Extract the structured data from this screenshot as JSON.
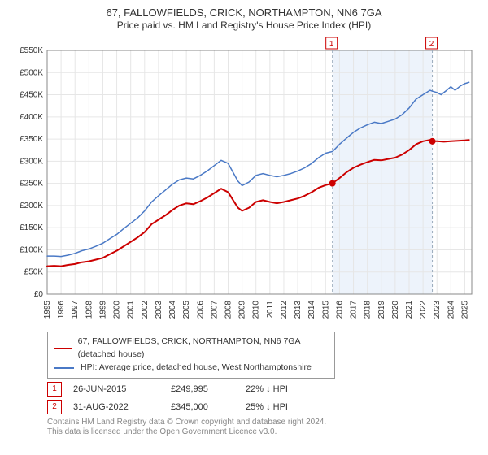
{
  "title": "67, FALLOWFIELDS, CRICK, NORTHAMPTON, NN6 7GA",
  "subtitle": "Price paid vs. HM Land Registry's House Price Index (HPI)",
  "chart": {
    "type": "line",
    "x_range": [
      1995,
      2025.5
    ],
    "y_range": [
      0,
      550000
    ],
    "y_ticks": [
      0,
      50000,
      100000,
      150000,
      200000,
      250000,
      300000,
      350000,
      400000,
      450000,
      500000,
      550000
    ],
    "y_tick_labels": [
      "£0",
      "£50K",
      "£100K",
      "£150K",
      "£200K",
      "£250K",
      "£300K",
      "£350K",
      "£400K",
      "£450K",
      "£500K",
      "£550K"
    ],
    "x_ticks": [
      1995,
      1996,
      1997,
      1998,
      1999,
      2000,
      2001,
      2002,
      2003,
      2004,
      2005,
      2006,
      2007,
      2008,
      2009,
      2010,
      2011,
      2012,
      2013,
      2014,
      2015,
      2016,
      2017,
      2018,
      2019,
      2020,
      2021,
      2022,
      2023,
      2024,
      2025
    ],
    "grid_color": "#e6e6e6",
    "axis_color": "#888888",
    "background_color": "#ffffff",
    "bands": [
      {
        "from": 2015.49,
        "to": 2022.67,
        "color": "#edf3fb"
      }
    ],
    "series": [
      {
        "key": "property",
        "label": "67, FALLOWFIELDS, CRICK, NORTHAMPTON, NN6 7GA (detached house)",
        "color": "#cc0000",
        "line_width": 2,
        "data": [
          [
            1995.0,
            63000
          ],
          [
            1995.5,
            64000
          ],
          [
            1996.0,
            63000
          ],
          [
            1996.5,
            66000
          ],
          [
            1997.0,
            68000
          ],
          [
            1997.5,
            72000
          ],
          [
            1998.0,
            74000
          ],
          [
            1998.5,
            78000
          ],
          [
            1999.0,
            82000
          ],
          [
            1999.5,
            90000
          ],
          [
            2000.0,
            98000
          ],
          [
            2000.5,
            108000
          ],
          [
            2001.0,
            118000
          ],
          [
            2001.5,
            128000
          ],
          [
            2002.0,
            140000
          ],
          [
            2002.5,
            158000
          ],
          [
            2003.0,
            168000
          ],
          [
            2003.5,
            178000
          ],
          [
            2004.0,
            190000
          ],
          [
            2004.5,
            200000
          ],
          [
            2005.0,
            205000
          ],
          [
            2005.5,
            203000
          ],
          [
            2006.0,
            210000
          ],
          [
            2006.5,
            218000
          ],
          [
            2007.0,
            228000
          ],
          [
            2007.5,
            238000
          ],
          [
            2008.0,
            230000
          ],
          [
            2008.3,
            215000
          ],
          [
            2008.7,
            195000
          ],
          [
            2009.0,
            188000
          ],
          [
            2009.5,
            195000
          ],
          [
            2010.0,
            208000
          ],
          [
            2010.5,
            212000
          ],
          [
            2011.0,
            208000
          ],
          [
            2011.5,
            205000
          ],
          [
            2012.0,
            208000
          ],
          [
            2012.5,
            212000
          ],
          [
            2013.0,
            216000
          ],
          [
            2013.5,
            222000
          ],
          [
            2014.0,
            230000
          ],
          [
            2014.5,
            240000
          ],
          [
            2015.0,
            246000
          ],
          [
            2015.49,
            249995
          ],
          [
            2016.0,
            262000
          ],
          [
            2016.5,
            275000
          ],
          [
            2017.0,
            285000
          ],
          [
            2017.5,
            292000
          ],
          [
            2018.0,
            298000
          ],
          [
            2018.5,
            303000
          ],
          [
            2019.0,
            302000
          ],
          [
            2019.5,
            305000
          ],
          [
            2020.0,
            308000
          ],
          [
            2020.5,
            315000
          ],
          [
            2021.0,
            325000
          ],
          [
            2021.5,
            338000
          ],
          [
            2022.0,
            345000
          ],
          [
            2022.5,
            348000
          ],
          [
            2022.67,
            345000
          ],
          [
            2023.0,
            345000
          ],
          [
            2023.5,
            344000
          ],
          [
            2024.0,
            345000
          ],
          [
            2024.5,
            346000
          ],
          [
            2025.0,
            347000
          ],
          [
            2025.3,
            348000
          ]
        ]
      },
      {
        "key": "hpi",
        "label": "HPI: Average price, detached house, West Northamptonshire",
        "color": "#4a79c6",
        "line_width": 1.5,
        "data": [
          [
            1995.0,
            86000
          ],
          [
            1995.5,
            86000
          ],
          [
            1996.0,
            85000
          ],
          [
            1996.5,
            88000
          ],
          [
            1997.0,
            92000
          ],
          [
            1997.5,
            98000
          ],
          [
            1998.0,
            102000
          ],
          [
            1998.5,
            108000
          ],
          [
            1999.0,
            115000
          ],
          [
            1999.5,
            125000
          ],
          [
            2000.0,
            135000
          ],
          [
            2000.5,
            148000
          ],
          [
            2001.0,
            160000
          ],
          [
            2001.5,
            172000
          ],
          [
            2002.0,
            188000
          ],
          [
            2002.5,
            208000
          ],
          [
            2003.0,
            222000
          ],
          [
            2003.5,
            235000
          ],
          [
            2004.0,
            248000
          ],
          [
            2004.5,
            258000
          ],
          [
            2005.0,
            262000
          ],
          [
            2005.5,
            260000
          ],
          [
            2006.0,
            268000
          ],
          [
            2006.5,
            278000
          ],
          [
            2007.0,
            290000
          ],
          [
            2007.5,
            302000
          ],
          [
            2008.0,
            295000
          ],
          [
            2008.3,
            278000
          ],
          [
            2008.7,
            255000
          ],
          [
            2009.0,
            245000
          ],
          [
            2009.5,
            253000
          ],
          [
            2010.0,
            268000
          ],
          [
            2010.5,
            272000
          ],
          [
            2011.0,
            268000
          ],
          [
            2011.5,
            265000
          ],
          [
            2012.0,
            268000
          ],
          [
            2012.5,
            272000
          ],
          [
            2013.0,
            278000
          ],
          [
            2013.5,
            285000
          ],
          [
            2014.0,
            295000
          ],
          [
            2014.5,
            308000
          ],
          [
            2015.0,
            318000
          ],
          [
            2015.5,
            322000
          ],
          [
            2016.0,
            338000
          ],
          [
            2016.5,
            352000
          ],
          [
            2017.0,
            365000
          ],
          [
            2017.5,
            375000
          ],
          [
            2018.0,
            382000
          ],
          [
            2018.5,
            388000
          ],
          [
            2019.0,
            385000
          ],
          [
            2019.5,
            390000
          ],
          [
            2020.0,
            395000
          ],
          [
            2020.5,
            405000
          ],
          [
            2021.0,
            420000
          ],
          [
            2021.5,
            440000
          ],
          [
            2022.0,
            450000
          ],
          [
            2022.5,
            460000
          ],
          [
            2022.67,
            458000
          ],
          [
            2023.0,
            455000
          ],
          [
            2023.3,
            450000
          ],
          [
            2023.7,
            460000
          ],
          [
            2024.0,
            468000
          ],
          [
            2024.3,
            460000
          ],
          [
            2024.7,
            470000
          ],
          [
            2025.0,
            475000
          ],
          [
            2025.3,
            478000
          ]
        ]
      }
    ],
    "markers": [
      {
        "label": "1",
        "x": 2015.49,
        "y": 249995,
        "color": "#cc0000"
      },
      {
        "label": "2",
        "x": 2022.67,
        "y": 345000,
        "color": "#cc0000"
      }
    ]
  },
  "legend": {
    "items": [
      {
        "series_key": "property"
      },
      {
        "series_key": "hpi"
      }
    ]
  },
  "transactions": [
    {
      "badge": "1",
      "date": "26-JUN-2015",
      "price": "£249,995",
      "diff": "22% ↓ HPI"
    },
    {
      "badge": "2",
      "date": "31-AUG-2022",
      "price": "£345,000",
      "diff": "25% ↓ HPI"
    }
  ],
  "attribution": {
    "line1": "Contains HM Land Registry data © Crown copyright and database right 2024.",
    "line2": "This data is licensed under the Open Government Licence v3.0."
  }
}
